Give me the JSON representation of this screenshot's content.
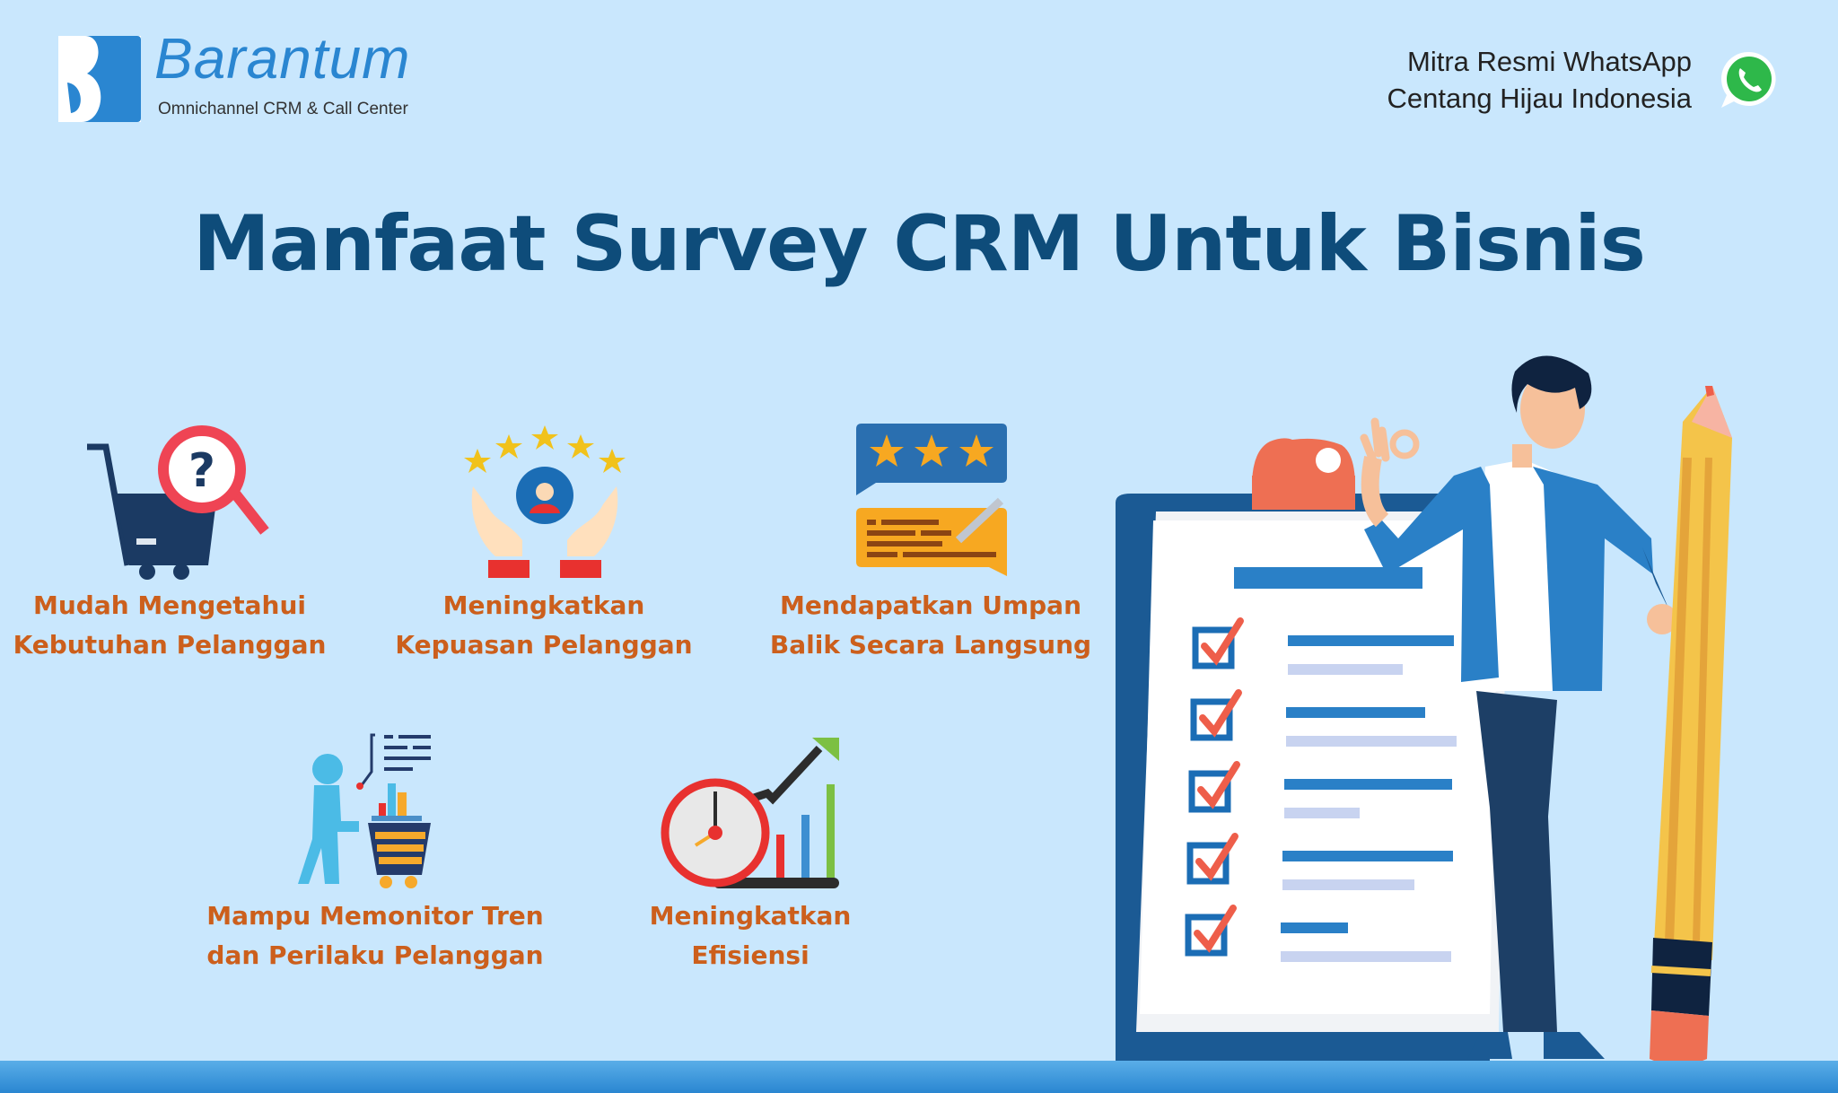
{
  "brand": {
    "name": "Barantum",
    "tagline": "Omnichannel CRM & Call Center"
  },
  "partner": {
    "line1": "Mitra Resmi WhatsApp",
    "line2": "Centang Hijau Indonesia",
    "icon": "whatsapp-icon"
  },
  "title": "Manfaat Survey CRM Untuk Bisnis",
  "benefits": [
    {
      "line1": "Mudah Mengetahui",
      "line2": "Kebutuhan Pelanggan",
      "icon": "cart-magnifier-icon"
    },
    {
      "line1": "Meningkatkan",
      "line2": "Kepuasan Pelanggan",
      "icon": "hands-stars-icon"
    },
    {
      "line1": "Mendapatkan Umpan",
      "line2": "Balik Secara Langsung",
      "icon": "feedback-chat-icon"
    },
    {
      "line1": "Mampu Memonitor Tren",
      "line2": "dan Perilaku Pelanggan",
      "icon": "shopper-trend-icon"
    },
    {
      "line1": "Meningkatkan",
      "line2": "Efisiensi",
      "icon": "clock-growth-icon"
    }
  ],
  "colors": {
    "background": "#c9e7fd",
    "title": "#0e4c7a",
    "label": "#cc5f1c",
    "brand": "#2a86d1"
  }
}
